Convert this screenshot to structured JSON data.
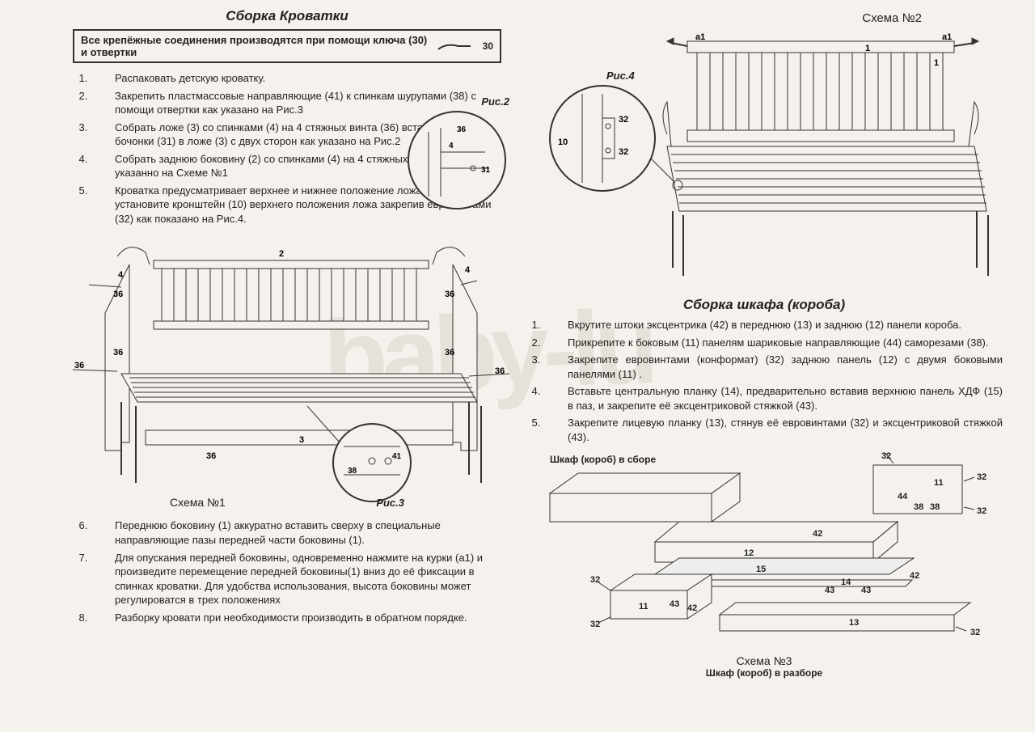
{
  "left": {
    "title": "Сборка Кроватки",
    "tool_text": "Все крепёжные соединения производятся при помощи ключа (30) и отвертки",
    "tool_num": "30",
    "steps1": [
      "Распаковать детскую кроватку.",
      "Закрепить пластмассовые направляющие (41) к спинкам шурупами (38) с помощи отвертки как указано на Рис.3",
      "Собрать ложе (3) со спинками (4) на 4 стяжных винта (36) вставляя гайки - бочонки (31) в ложе (3) с двух сторон как указано на Рис.2",
      "Собрать заднюю боковину (2) со спинками (4) на 4 стяжных винта (36) как указанно на Схеме №1",
      "Кроватка предусматривает верхнее и нижнее положение ложа, при желании установите кронштейн (10) верхнего положения ложа закрепив евровинтами (32) как показано на Рис.4."
    ],
    "fig2": "Рис.2",
    "fig3": "Рис.3",
    "schema1": "Схема №1",
    "steps2": [
      "Переднюю боковину (1) аккуратно вставить сверху в специальные направляющие пазы передней части боковины (1).",
      "Для опускания передней боковины, одновременно нажмите на курки (а1) и произведите перемещение передней боковины(1) вниз до её фиксации в спинках кроватки. Для удобства использования, высота боковины может регулироватся в трех положениях",
      "Разборку кровати при необходимости производить в обратном порядке."
    ]
  },
  "right": {
    "schema2": "Схема №2",
    "fig4": "Рис.4",
    "sec_title": "Сборка шкафа (короба)",
    "steps": [
      "Вкрутите штоки эксцентрика (42) в переднюю (13) и заднюю (12) панели короба.",
      "Прикрепите к боковым (11) панелям шариковые направляющие (44) саморезами (38).",
      "Закрепите евровинтами (конформат) (32) заднюю панель (12) с двумя боковыми панелями (11) .",
      "Вставьте центральную планку (14), предварительно вставив верхнюю панель ХДФ (15) в паз, и закрепите её эксцентриковой стяжкой (43).",
      "Закрепите лицевую планку (13), стянув её евровинтами (32) и эксцентриковой стяжкой (43)."
    ],
    "cab_assembled": "Шкаф (короб) в сборе",
    "schema3": "Схема №3",
    "cab_exploded": "Шкаф (короб) в разборе"
  },
  "labels": {
    "n36": "36",
    "n31": "31",
    "n4": "4",
    "n2": "2",
    "n3": "3",
    "n38": "38",
    "n41": "41",
    "n10": "10",
    "n32": "32",
    "n1": "1",
    "na1": "а1",
    "n11": "11",
    "n12": "12",
    "n13": "13",
    "n14": "14",
    "n15": "15",
    "n42": "42",
    "n43": "43",
    "n44": "44"
  },
  "colors": {
    "bg": "#f5f1ec",
    "line": "#333333",
    "light": "#999999"
  }
}
